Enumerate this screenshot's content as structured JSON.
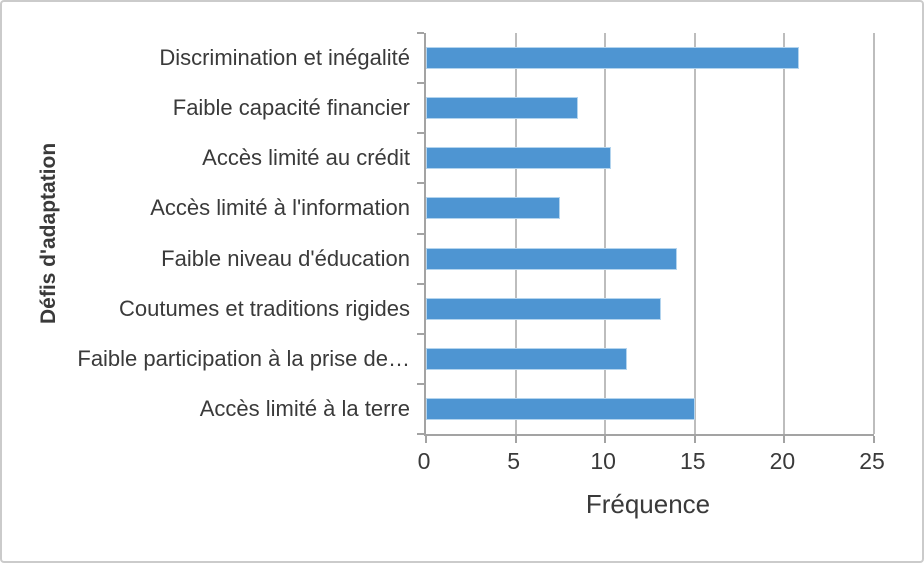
{
  "chart_data": {
    "type": "bar",
    "orientation": "horizontal",
    "xlabel": "Fréquence",
    "ylabel": "Défis d'adaptation",
    "categories": [
      "Discrimination et inégalité",
      "Faible capacité financier",
      "Accès limité au crédit",
      "Accès limité à l'information",
      "Faible niveau d'éducation",
      "Coutumes et traditions rigides",
      "Faible participation à la prise de…",
      "Accès limité à la terre"
    ],
    "values": [
      20.8,
      8.5,
      10.3,
      7.5,
      14,
      13.1,
      11.2,
      15
    ],
    "xlim": [
      0,
      25
    ],
    "x_ticks": [
      0,
      5,
      10,
      15,
      20,
      25
    ],
    "grid": "vertical-only",
    "legend": false,
    "colors": {
      "bar": "#4e95d2",
      "bar_border": "#b3d4ee",
      "gridline": "#bdbdbd",
      "axis": "#a3a3a3",
      "text": "#3a3a3a",
      "figure_border": "#cbcbcb"
    }
  }
}
